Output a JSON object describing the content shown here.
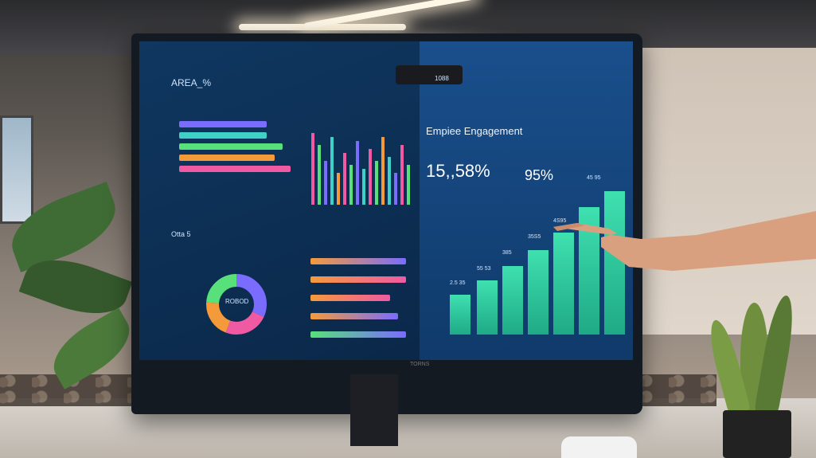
{
  "screen": {
    "left_panel": {
      "title": "AREA_%",
      "stats_label": "Otta 5",
      "donut_label": "ROBOD"
    },
    "right_panel": {
      "title": "Empiee Engagement",
      "metric_1": "15,,58%",
      "metric_2": "95%",
      "bar_labels": [
        "2.5 35",
        "55 53",
        "385",
        "35S5",
        "4S95",
        "45 95"
      ]
    }
  },
  "webcam_label": "1088",
  "monitor_brand": "TORNS"
}
